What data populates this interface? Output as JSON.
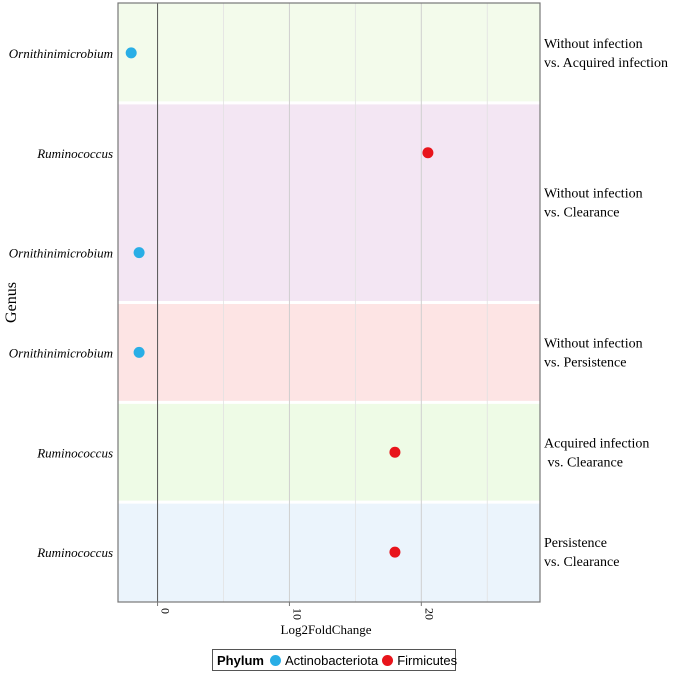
{
  "chart_data": {
    "type": "scatter",
    "title": "",
    "xlabel": "Log2FoldChange",
    "ylabel": "Genus",
    "xlim": [
      -3,
      29
    ],
    "xticks": [
      0,
      10,
      20
    ],
    "grid": true,
    "zero_line": 0,
    "series": [
      {
        "name": "Actinobacteriota",
        "color": "#29aee6"
      },
      {
        "name": "Firmicutes",
        "color": "#e8141b"
      }
    ],
    "rows": [
      {
        "genus": "Ornithinimicrobium",
        "x": -2.0,
        "phylum": "Actinobacteriota",
        "group": 0
      },
      {
        "genus": "Ruminococcus",
        "x": 20.5,
        "phylum": "Firmicutes",
        "group": 1
      },
      {
        "genus": "Ornithinimicrobium",
        "x": -1.4,
        "phylum": "Actinobacteriota",
        "group": 1
      },
      {
        "genus": "Ornithinimicrobium",
        "x": -1.4,
        "phylum": "Actinobacteriota",
        "group": 2
      },
      {
        "genus": "Ruminococcus",
        "x": 18.0,
        "phylum": "Firmicutes",
        "group": 3
      },
      {
        "genus": "Ruminococcus",
        "x": 18.0,
        "phylum": "Firmicutes",
        "group": 4
      }
    ],
    "groups": [
      {
        "label1": "Without infection",
        "label2": "vs. Acquired infection",
        "color": "#f3fbeb",
        "rows": 1
      },
      {
        "label1": "Without infection",
        "label2": "vs. Clearance",
        "color": "#f3e6f3",
        "rows": 2
      },
      {
        "label1": "Without infection",
        "label2": "vs. Persistence",
        "color": "#fde4e4",
        "rows": 1
      },
      {
        "label1": "Acquired infection",
        "label2": " vs. Clearance",
        "color": "#eefbe6",
        "rows": 1
      },
      {
        "label1": "Persistence",
        "label2": "vs. Clearance",
        "color": "#ebf4fc",
        "rows": 1
      }
    ]
  },
  "legend": {
    "title": "Phylum",
    "items": [
      {
        "label": "Actinobacteriota",
        "color": "#29aee6"
      },
      {
        "label": "Firmicutes",
        "color": "#e8141b"
      }
    ]
  }
}
